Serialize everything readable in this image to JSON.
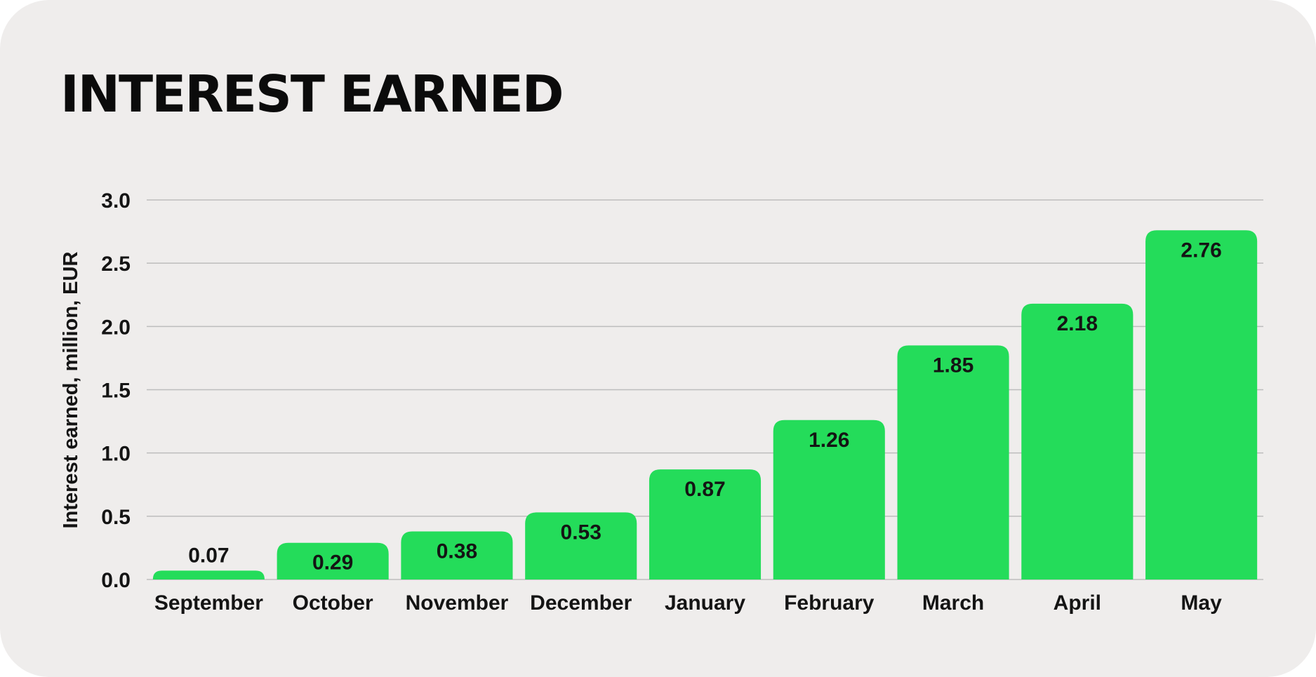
{
  "colors": {
    "background": "#efedec",
    "bar": "#24dc5a",
    "grid": "#bdbdbd",
    "text": "#141414"
  },
  "chart_data": {
    "type": "bar",
    "title": "INTEREST EARNED",
    "xlabel": "",
    "ylabel": "Interest earned, million, EUR",
    "categories": [
      "September",
      "October",
      "November",
      "December",
      "January",
      "February",
      "March",
      "April",
      "May"
    ],
    "values": [
      0.07,
      0.29,
      0.38,
      0.53,
      0.87,
      1.26,
      1.85,
      2.18,
      2.76
    ],
    "value_labels": [
      "0.07",
      "0.29",
      "0.38",
      "0.53",
      "0.87",
      "1.26",
      "1.85",
      "2.18",
      "2.76"
    ],
    "ylim": [
      0,
      3.0
    ],
    "yticks": [
      0.0,
      0.5,
      1.0,
      1.5,
      2.0,
      2.5,
      3.0
    ],
    "ytick_labels": [
      "0.0",
      "0.5",
      "1.0",
      "1.5",
      "2.0",
      "2.5",
      "3.0"
    ],
    "grid": true,
    "legend": false
  }
}
